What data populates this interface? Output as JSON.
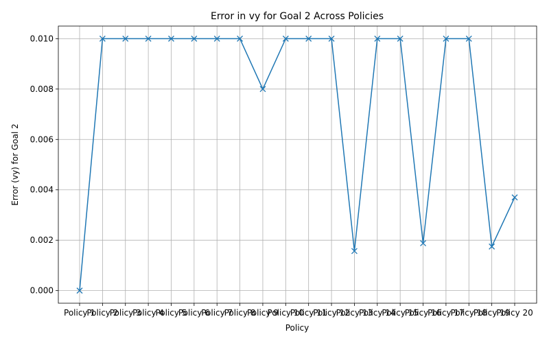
{
  "chart_data": {
    "type": "line",
    "title": "Error in vy for Goal 2 Across Policies",
    "xlabel": "Policy",
    "ylabel": "Error (vy) for Goal 2",
    "categories": [
      "Policy 1",
      "Policy 2",
      "Policy 3",
      "Policy 4",
      "Policy 5",
      "Policy 6",
      "Policy 7",
      "Policy 8",
      "Policy 9",
      "Policy 10",
      "Policy 11",
      "Policy 12",
      "Policy 13",
      "Policy 14",
      "Policy 15",
      "Policy 16",
      "Policy 17",
      "Policy 18",
      "Policy 19",
      "Policy 20"
    ],
    "series": [
      {
        "values": [
          0.0,
          0.01,
          0.01,
          0.01,
          0.01,
          0.01,
          0.01,
          0.01,
          0.008,
          0.01,
          0.01,
          0.01,
          0.00157,
          0.01,
          0.01,
          0.00188,
          0.01,
          0.01,
          0.00175,
          0.0037
        ],
        "color": "#1f77b4",
        "marker": "x"
      }
    ],
    "yticks": [
      "0.000",
      "0.002",
      "0.004",
      "0.006",
      "0.008",
      "0.010"
    ],
    "ylim": [
      -0.0005,
      0.0105
    ],
    "grid": true
  }
}
